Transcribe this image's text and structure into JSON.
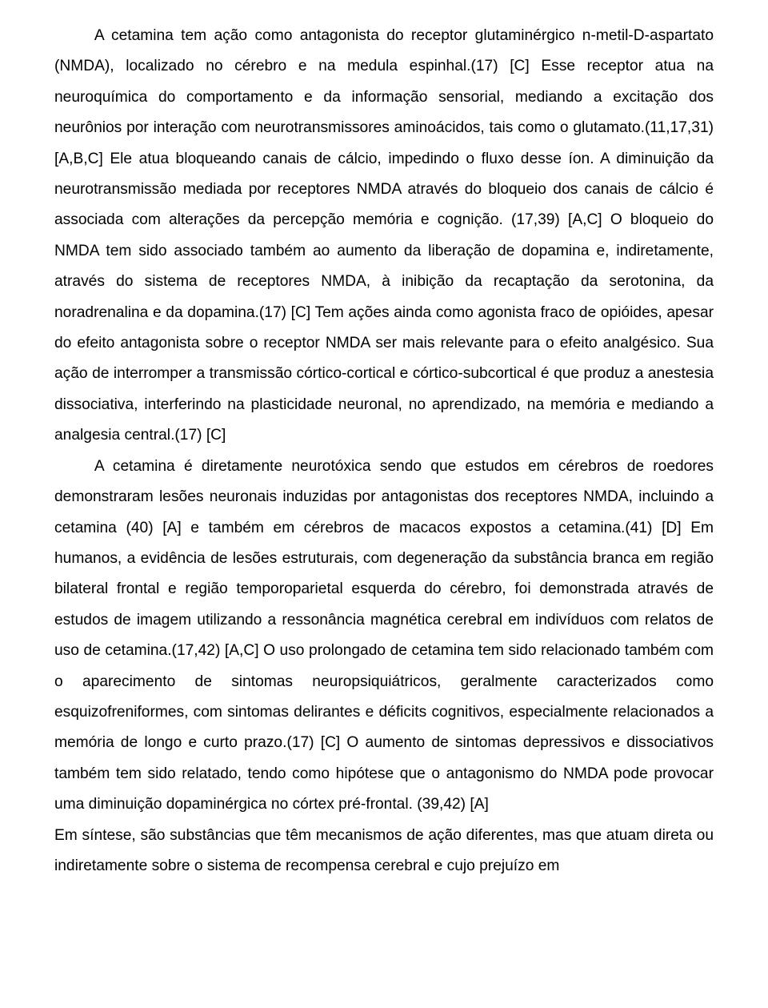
{
  "document": {
    "paragraphs": [
      "A cetamina tem ação como antagonista do receptor glutaminérgico n-metil-D-aspartato (NMDA), localizado no cérebro e na medula espinhal.(17) [C] Esse receptor atua na neuroquímica do comportamento e da informação sensorial, mediando a excitação dos neurônios por interação com neurotransmissores aminoácidos, tais como o glutamato.(11,17,31) [A,B,C] Ele atua bloqueando canais de cálcio, impedindo o fluxo desse íon. A diminuição da neurotransmissão mediada por receptores NMDA através do bloqueio dos canais de cálcio é associada com alterações da percepção memória e cognição. (17,39) [A,C] O bloqueio do NMDA tem sido associado também ao aumento da liberação de dopamina e, indiretamente, através do sistema de receptores NMDA, à inibição da recaptação da serotonina, da noradrenalina e da dopamina.(17) [C] Tem ações ainda como agonista fraco de opióides, apesar do efeito antagonista sobre o receptor NMDA ser mais relevante para o efeito analgésico. Sua ação de interromper a transmissão córtico-cortical e córtico-subcortical é que produz a anestesia dissociativa, interferindo na plasticidade neuronal, no aprendizado, na memória e mediando a analgesia central.(17) [C]",
      "A cetamina é diretamente neurotóxica sendo que estudos em cérebros de roedores demonstraram lesões neuronais induzidas por antagonistas dos receptores NMDA, incluindo a cetamina (40) [A] e também em cérebros de macacos expostos a cetamina.(41) [D] Em humanos, a evidência de lesões  estruturais, com degeneração da substância branca em região bilateral frontal e região temporoparietal esquerda do cérebro, foi demonstrada através de estudos de imagem utilizando a ressonância magnética cerebral em indivíduos com relatos de uso de cetamina.(17,42) [A,C] O uso prolongado de cetamina tem sido relacionado também com o aparecimento de sintomas neuropsiquiátricos, geralmente caracterizados como esquizofreniformes, com sintomas delirantes e déficits cognitivos, especialmente relacionados a memória de longo e curto prazo.(17) [C] O aumento de sintomas depressivos e dissociativos também tem sido relatado, tendo como hipótese que o antagonismo do NMDA pode provocar uma diminuição dopaminérgica no córtex pré-frontal. (39,42) [A]",
      "Em síntese, são substâncias que têm mecanismos de ação diferentes, mas que atuam direta ou indiretamente sobre o sistema de recompensa cerebral e cujo prejuízo em"
    ]
  }
}
